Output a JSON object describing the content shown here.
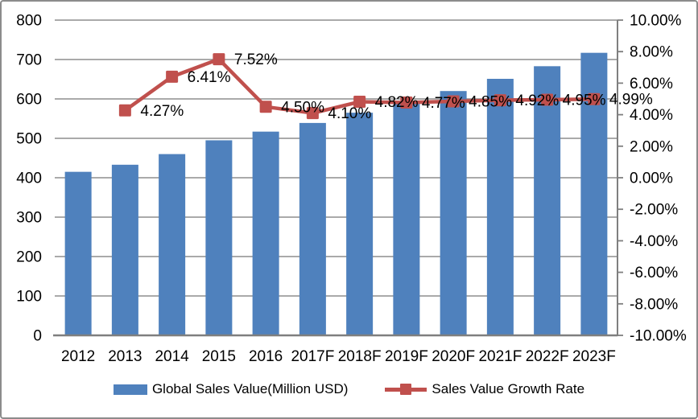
{
  "chart_data": {
    "type": "combo-bar-line",
    "categories": [
      "2012",
      "2013",
      "2014",
      "2015",
      "2016",
      "2017F",
      "2018F",
      "2019F",
      "2020F",
      "2021F",
      "2022F",
      "2023F"
    ],
    "series": [
      {
        "name": "Global Sales Value(Million USD)",
        "type": "bar",
        "yaxis": "left",
        "color": "#4F81BD",
        "values": [
          415,
          433,
          460,
          495,
          517,
          539,
          565,
          591,
          620,
          651,
          683,
          717
        ]
      },
      {
        "name": "Sales Value Growth Rate",
        "type": "line",
        "yaxis": "right",
        "color": "#C0504D",
        "values": [
          null,
          4.27,
          6.41,
          7.52,
          4.5,
          4.1,
          4.82,
          4.77,
          4.85,
          4.92,
          4.95,
          4.99
        ],
        "point_labels": [
          "",
          "4.27%",
          "6.41%",
          "7.52%",
          "4.50%",
          "4.10%",
          "4.82%",
          "4.77%",
          "4.85%",
          "4.92%",
          "4.95%",
          "4.99%"
        ]
      }
    ],
    "left_axis": {
      "min": 0,
      "max": 800,
      "step": 100,
      "tick_labels": [
        "0",
        "100",
        "200",
        "300",
        "400",
        "500",
        "600",
        "700",
        "800"
      ]
    },
    "right_axis": {
      "min": -10,
      "max": 10,
      "step": 2,
      "tick_labels": [
        "-10.00%",
        "-8.00%",
        "-6.00%",
        "-4.00%",
        "-2.00%",
        "0.00%",
        "2.00%",
        "4.00%",
        "6.00%",
        "8.00%",
        "10.00%"
      ]
    },
    "grid": "horizontal gridlines at left-axis steps",
    "legend_position": "bottom"
  },
  "legend": {
    "items": [
      {
        "label": "Global Sales Value(Million USD)",
        "marker": "bar-swatch",
        "color": "#4F81BD"
      },
      {
        "label": "Sales Value Growth Rate",
        "marker": "line-square-swatch",
        "color": "#C0504D"
      }
    ]
  },
  "colors": {
    "bar": "#4F81BD",
    "line": "#C0504D",
    "grid": "#8e8e8e",
    "axis": "#7f7f7f",
    "text": "#000000",
    "background": "#ffffff",
    "border": "#8c8c8c"
  }
}
